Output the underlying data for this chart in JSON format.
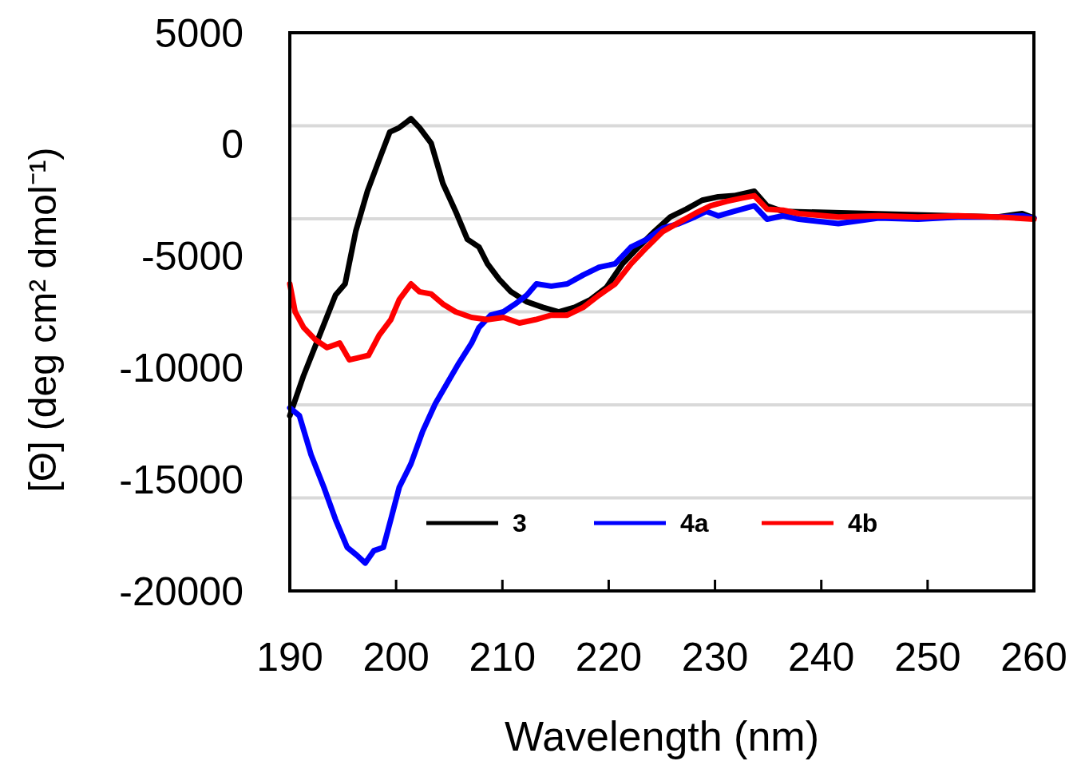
{
  "chart_data": {
    "type": "line",
    "xlabel": "Wavelength (nm)",
    "ylabel": "[Θ] (deg cm² dmol⁻¹)",
    "xlim": [
      190,
      260
    ],
    "xticks": [
      190,
      200,
      210,
      220,
      230,
      240,
      250,
      260
    ],
    "ylim": [
      -20000,
      5000
    ],
    "yticks": [
      5000,
      0,
      -5000,
      -10000,
      -15000,
      -20000,
      {
        "value": 833,
        "label": null
      },
      {
        "value": -3333,
        "label": null
      },
      {
        "value": -7500,
        "label": null
      },
      {
        "value": -11667,
        "label": null
      },
      {
        "value": -15833,
        "label": null
      }
    ],
    "grid": "y",
    "legend": "bottom",
    "line_style": "solid",
    "marker": "none",
    "series": [
      {
        "name": "3",
        "color": "#000000",
        "x": [
          190,
          191.3,
          192.8,
          194.3,
          195.2,
          196.2,
          197.3,
          198.4,
          199.4,
          200.3,
          201.4,
          202.2,
          203.3,
          204.4,
          205.6,
          206.7,
          207.8,
          208.6,
          209.7,
          210.8,
          212.3,
          213.8,
          215.3,
          216.8,
          218.3,
          219.8,
          221.3,
          222.8,
          224.3,
          225.8,
          227.3,
          228.8,
          230.3,
          231.8,
          233.7,
          234.9,
          236.4,
          256.6,
          258.9,
          260
        ],
        "values": [
          -12150,
          -10350,
          -8550,
          -6750,
          -6250,
          -3900,
          -2100,
          -700,
          550,
          750,
          1150,
          750,
          50,
          -1750,
          -3000,
          -4250,
          -4600,
          -5350,
          -6050,
          -6600,
          -7050,
          -7300,
          -7500,
          -7300,
          -6950,
          -6400,
          -5350,
          -4600,
          -3900,
          -3250,
          -2900,
          -2500,
          -2350,
          -2300,
          -2100,
          -2750,
          -3000,
          -3250,
          -3100,
          -3300
        ]
      },
      {
        "name": "4a",
        "color": "#0000ff",
        "x": [
          190,
          190.9,
          192,
          193.2,
          194.3,
          195.4,
          196.3,
          197.1,
          197.9,
          198.8,
          199.5,
          200.3,
          201.4,
          202.5,
          203.7,
          204.8,
          205.9,
          207.1,
          207.8,
          208.9,
          210.1,
          211.2,
          212.3,
          213.2,
          214.6,
          216.1,
          217.6,
          219.1,
          220.6,
          222.1,
          223.6,
          225.1,
          226.6,
          228.1,
          229.2,
          230.3,
          231.8,
          233.7,
          234.9,
          236.4,
          237.9,
          241.6,
          245.4,
          249.1,
          252.9,
          256.6,
          258.9,
          260
        ],
        "values": [
          -11800,
          -12150,
          -13900,
          -15350,
          -16800,
          -18050,
          -18400,
          -18750,
          -18200,
          -18050,
          -16800,
          -15350,
          -14300,
          -12850,
          -11600,
          -10700,
          -9800,
          -8900,
          -8200,
          -7650,
          -7500,
          -7150,
          -6750,
          -6250,
          -6350,
          -6250,
          -5850,
          -5500,
          -5350,
          -4600,
          -4250,
          -3750,
          -3550,
          -3250,
          -3000,
          -3200,
          -3000,
          -2750,
          -3350,
          -3200,
          -3350,
          -3550,
          -3300,
          -3350,
          -3250,
          -3250,
          -3200,
          -3300
        ]
      },
      {
        "name": "4b",
        "color": "#ff0000",
        "x": [
          190,
          190.5,
          191.3,
          192.4,
          193.5,
          194.7,
          195.6,
          196.5,
          197.4,
          198.4,
          199.5,
          200.3,
          201.4,
          202.2,
          203.3,
          204.4,
          205.6,
          207.1,
          208.6,
          210.1,
          211.6,
          213.1,
          214.6,
          216.1,
          217.6,
          219.1,
          220.6,
          222.1,
          223.6,
          225.1,
          226.6,
          228.1,
          229.6,
          231.1,
          232.6,
          233.7,
          234.9,
          236.4,
          237.9,
          241.6,
          245.4,
          249.1,
          252.9,
          256.6,
          260
        ],
        "values": [
          -6250,
          -7500,
          -8200,
          -8750,
          -9100,
          -8900,
          -9650,
          -9550,
          -9450,
          -8550,
          -7850,
          -6950,
          -6250,
          -6600,
          -6700,
          -7150,
          -7500,
          -7750,
          -7850,
          -7750,
          -8000,
          -7850,
          -7650,
          -7650,
          -7300,
          -6750,
          -6250,
          -5350,
          -4600,
          -3900,
          -3500,
          -3100,
          -2750,
          -2550,
          -2400,
          -2300,
          -2900,
          -2950,
          -3100,
          -3250,
          -3200,
          -3250,
          -3200,
          -3250,
          -3350
        ]
      }
    ]
  }
}
